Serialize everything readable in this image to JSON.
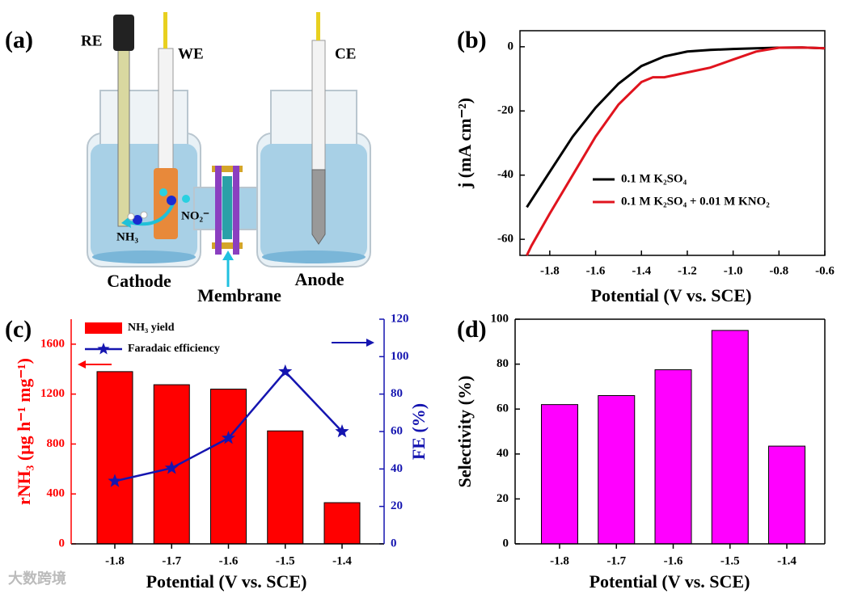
{
  "diagram": {
    "panel_label": "(a)",
    "labels": {
      "re": "RE",
      "we": "WE",
      "ce": "CE",
      "nitrite": "NO₂⁻",
      "ammonia": "NH₃",
      "cathode": "Cathode",
      "membrane": "Membrane",
      "anode": "Anode"
    }
  },
  "watermark": "大数跨境",
  "chart_data": [
    {
      "type": "line",
      "panel_label": "(b)",
      "xlabel": "Potential (V vs. SCE)",
      "ylabel": "j (mA cm⁻²)",
      "xlim": [
        -1.93,
        -0.6
      ],
      "xticks": [
        -1.8,
        -1.6,
        -1.4,
        -1.2,
        {
          "value": -1,
          "label": "-1.0"
        },
        -0.8,
        -0.6
      ],
      "ylim": [
        -65,
        5
      ],
      "yticks": [
        0,
        -20,
        -40,
        -60
      ],
      "series": [
        {
          "name": "0.1 M K₂SO₄",
          "color": "#000000",
          "x": [
            -1.9,
            -1.8,
            -1.7,
            -1.6,
            -1.5,
            -1.4,
            -1.3,
            -1.2,
            -1.1,
            -1.0,
            -0.9,
            -0.8,
            -0.7,
            -0.6
          ],
          "values": [
            -50,
            -39,
            -28,
            -19,
            -11.5,
            -6,
            -3,
            -1.5,
            -1,
            -0.7,
            -0.5,
            -0.3,
            -0.2,
            -0.5
          ]
        },
        {
          "name": "0.1 M K₂SO₄ + 0.01 M KNO₂",
          "color": "#e0141e",
          "x": [
            -1.9,
            -1.88,
            -1.8,
            -1.7,
            -1.6,
            -1.5,
            -1.4,
            -1.35,
            -1.3,
            -1.2,
            -1.1,
            -1.0,
            -0.9,
            -0.8,
            -0.7,
            -0.6
          ],
          "values": [
            -65,
            -62,
            -52,
            -40,
            -28,
            -18,
            -11,
            -9.5,
            -9.5,
            -8,
            -6.5,
            -4,
            -1.5,
            -0.3,
            -0.2,
            -0.5
          ]
        }
      ]
    },
    {
      "type": "bar",
      "panel_label": "(c)",
      "xlabel": "Potential (V vs. SCE)",
      "ylabel": "rNH₃ (μg h⁻¹ mg⁻¹)",
      "y2label": "FE (%)",
      "categories": [
        "-1.8",
        "-1.7",
        "-1.6",
        "-1.5",
        "-1.4"
      ],
      "ylim": [
        0,
        1800
      ],
      "yticks": [
        0,
        400,
        800,
        1200,
        1600
      ],
      "y2lim": [
        0,
        120
      ],
      "y2ticks": [
        0,
        20,
        40,
        60,
        80,
        100,
        120
      ],
      "series": [
        {
          "name": "NH₃ yield",
          "color": "#ff0000",
          "type": "bar",
          "values": [
            1380,
            1275,
            1240,
            905,
            330
          ]
        },
        {
          "name": "Faradaic efficiency",
          "color": "#1515b0",
          "type": "line",
          "axis": "y2",
          "values": [
            33.5,
            40.5,
            56.5,
            92,
            60
          ]
        }
      ]
    },
    {
      "type": "bar",
      "panel_label": "(d)",
      "xlabel": "Potential (V vs. SCE)",
      "ylabel": "Selectivity (%)",
      "categories": [
        "-1.8",
        "-1.7",
        "-1.6",
        "-1.5",
        "-1.4"
      ],
      "ylim": [
        0,
        100
      ],
      "yticks": [
        0,
        20,
        40,
        60,
        80,
        100
      ],
      "color": "#ff00ff",
      "values": [
        62,
        66,
        77.5,
        95,
        43.5
      ]
    }
  ]
}
